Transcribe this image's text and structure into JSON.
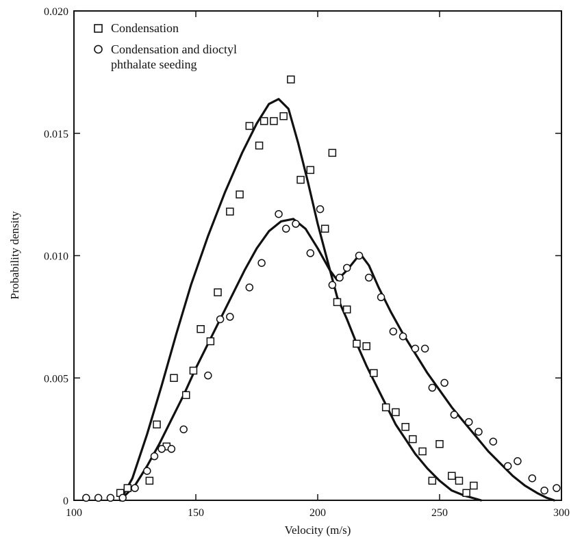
{
  "chart_data": {
    "type": "scatter",
    "title": "",
    "xlabel": "Velocity (m/s)",
    "ylabel": "Probability density",
    "xlim": [
      100,
      300
    ],
    "ylim": [
      0,
      0.02
    ],
    "x_ticks": [
      100,
      150,
      200,
      250,
      300
    ],
    "x_tick_labels": [
      "100",
      "150",
      "200",
      "250",
      "300"
    ],
    "y_ticks": [
      0,
      0.005,
      0.01,
      0.015,
      0.02
    ],
    "y_tick_labels": [
      "0",
      "0.005",
      "0.010",
      "0.015",
      "0.020"
    ],
    "grid": false,
    "legend_position": "top-left",
    "series": [
      {
        "name": "Condensation",
        "marker": "square",
        "points": [
          [
            119,
            0.0003
          ],
          [
            122,
            0.0005
          ],
          [
            131,
            0.0008
          ],
          [
            134,
            0.0031
          ],
          [
            138,
            0.0022
          ],
          [
            141,
            0.005
          ],
          [
            146,
            0.0043
          ],
          [
            149,
            0.0053
          ],
          [
            152,
            0.007
          ],
          [
            156,
            0.0065
          ],
          [
            159,
            0.0085
          ],
          [
            164,
            0.0118
          ],
          [
            168,
            0.0125
          ],
          [
            172,
            0.0153
          ],
          [
            176,
            0.0145
          ],
          [
            178,
            0.0155
          ],
          [
            182,
            0.0155
          ],
          [
            186,
            0.0157
          ],
          [
            189,
            0.0172
          ],
          [
            193,
            0.0131
          ],
          [
            197,
            0.0135
          ],
          [
            203,
            0.0111
          ],
          [
            206,
            0.0142
          ],
          [
            208,
            0.0081
          ],
          [
            212,
            0.0078
          ],
          [
            216,
            0.0064
          ],
          [
            220,
            0.0063
          ],
          [
            223,
            0.0052
          ],
          [
            228,
            0.0038
          ],
          [
            232,
            0.0036
          ],
          [
            236,
            0.003
          ],
          [
            239,
            0.0025
          ],
          [
            243,
            0.002
          ],
          [
            247,
            0.0008
          ],
          [
            250,
            0.0023
          ],
          [
            255,
            0.001
          ],
          [
            258,
            0.0008
          ],
          [
            261,
            0.0003
          ],
          [
            264,
            0.0006
          ]
        ],
        "fit": [
          [
            119,
            0
          ],
          [
            124,
            0.0009
          ],
          [
            130,
            0.0027
          ],
          [
            136,
            0.0047
          ],
          [
            142,
            0.0068
          ],
          [
            148,
            0.0088
          ],
          [
            155,
            0.0108
          ],
          [
            162,
            0.0126
          ],
          [
            169,
            0.0142
          ],
          [
            175,
            0.0154
          ],
          [
            180,
            0.0162
          ],
          [
            184,
            0.0164
          ],
          [
            188,
            0.016
          ],
          [
            192,
            0.0146
          ],
          [
            196,
            0.013
          ],
          [
            200,
            0.0113
          ],
          [
            204,
            0.0098
          ],
          [
            208,
            0.0083
          ],
          [
            212,
            0.0074
          ],
          [
            216,
            0.0064
          ],
          [
            220,
            0.0055
          ],
          [
            224,
            0.0047
          ],
          [
            228,
            0.0039
          ],
          [
            232,
            0.0031
          ],
          [
            236,
            0.0025
          ],
          [
            240,
            0.0019
          ],
          [
            245,
            0.0013
          ],
          [
            250,
            0.0008
          ],
          [
            255,
            0.0004
          ],
          [
            260,
            0.0002
          ],
          [
            267,
            0
          ]
        ],
        "color": "#111111"
      },
      {
        "name": "Condensation and dioctyl phthalate seeding",
        "marker": "circle",
        "points": [
          [
            105,
            0.0001
          ],
          [
            110,
            0.0001
          ],
          [
            115,
            0.0001
          ],
          [
            120,
            0.0001
          ],
          [
            125,
            0.0005
          ],
          [
            130,
            0.0012
          ],
          [
            133,
            0.0018
          ],
          [
            136,
            0.0021
          ],
          [
            140,
            0.0021
          ],
          [
            145,
            0.0029
          ],
          [
            155,
            0.0051
          ],
          [
            160,
            0.0074
          ],
          [
            164,
            0.0075
          ],
          [
            172,
            0.0087
          ],
          [
            177,
            0.0097
          ],
          [
            184,
            0.0117
          ],
          [
            187,
            0.0111
          ],
          [
            191,
            0.0113
          ],
          [
            197,
            0.0101
          ],
          [
            201,
            0.0119
          ],
          [
            206,
            0.0088
          ],
          [
            209,
            0.0091
          ],
          [
            212,
            0.0095
          ],
          [
            217,
            0.01
          ],
          [
            221,
            0.0091
          ],
          [
            226,
            0.0083
          ],
          [
            231,
            0.0069
          ],
          [
            235,
            0.0067
          ],
          [
            240,
            0.0062
          ],
          [
            244,
            0.0062
          ],
          [
            247,
            0.0046
          ],
          [
            252,
            0.0048
          ],
          [
            256,
            0.0035
          ],
          [
            262,
            0.0032
          ],
          [
            266,
            0.0028
          ],
          [
            272,
            0.0024
          ],
          [
            278,
            0.0014
          ],
          [
            282,
            0.0016
          ],
          [
            288,
            0.0009
          ],
          [
            293,
            0.0004
          ],
          [
            298,
            0.0005
          ]
        ],
        "fit": [
          [
            119,
            0
          ],
          [
            125,
            0.0006
          ],
          [
            130,
            0.0014
          ],
          [
            135,
            0.0023
          ],
          [
            140,
            0.0033
          ],
          [
            145,
            0.0043
          ],
          [
            150,
            0.0054
          ],
          [
            155,
            0.0064
          ],
          [
            160,
            0.0074
          ],
          [
            165,
            0.0084
          ],
          [
            170,
            0.0094
          ],
          [
            175,
            0.0103
          ],
          [
            180,
            0.011
          ],
          [
            185,
            0.0114
          ],
          [
            190,
            0.0115
          ],
          [
            195,
            0.0111
          ],
          [
            200,
            0.0103
          ],
          [
            205,
            0.0094
          ],
          [
            208,
            0.009
          ],
          [
            212,
            0.0094
          ],
          [
            216,
            0.0099
          ],
          [
            218,
            0.01
          ],
          [
            221,
            0.0096
          ],
          [
            225,
            0.0087
          ],
          [
            230,
            0.0077
          ],
          [
            235,
            0.0068
          ],
          [
            240,
            0.006
          ],
          [
            245,
            0.0052
          ],
          [
            250,
            0.0045
          ],
          [
            255,
            0.0038
          ],
          [
            260,
            0.0032
          ],
          [
            265,
            0.0026
          ],
          [
            270,
            0.002
          ],
          [
            275,
            0.0015
          ],
          [
            280,
            0.001
          ],
          [
            285,
            0.0006
          ],
          [
            290,
            0.0003
          ],
          [
            294,
            0.0001
          ],
          [
            297,
            0
          ]
        ],
        "color": "#111111"
      }
    ]
  }
}
